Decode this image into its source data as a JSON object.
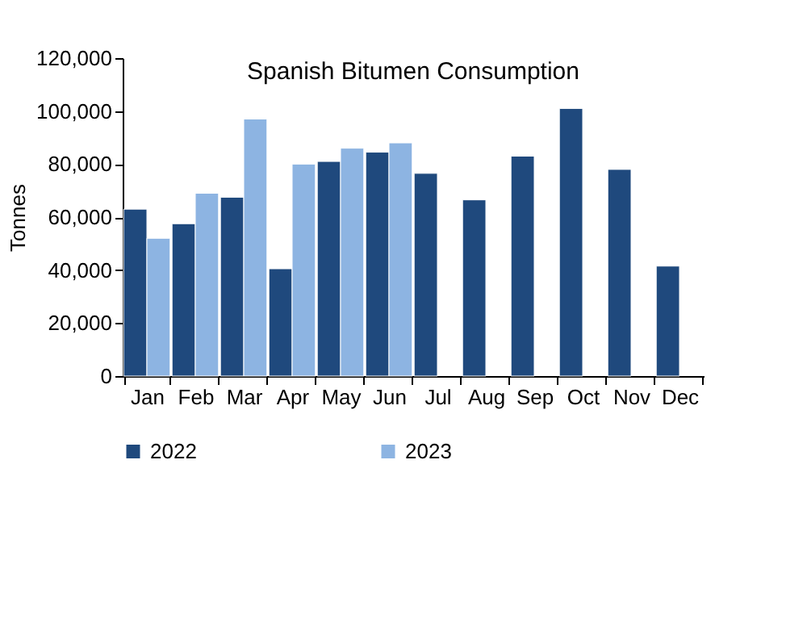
{
  "chart_data": {
    "type": "bar",
    "title": "Spanish Bitumen Consumption",
    "ylabel": "Tonnes",
    "categories": [
      "Jan",
      "Feb",
      "Mar",
      "Apr",
      "May",
      "Jun",
      "Jul",
      "Aug",
      "Sep",
      "Oct",
      "Nov",
      "Dec"
    ],
    "series": [
      {
        "name": "2022",
        "color": "#1f497d",
        "values": [
          63000,
          57500,
          67500,
          40500,
          81000,
          84500,
          76500,
          66500,
          83000,
          101000,
          78000,
          41500
        ]
      },
      {
        "name": "2023",
        "color": "#8db4e2",
        "values": [
          52000,
          69000,
          97000,
          80000,
          86000,
          88000,
          null,
          null,
          null,
          null,
          null,
          null
        ]
      }
    ],
    "ylim": [
      0,
      120000
    ],
    "yticks": [
      0,
      {
        "value": 20000,
        "label": "20,000"
      },
      {
        "value": 40000,
        "label": "40,000"
      },
      {
        "value": 60000,
        "label": "60,000"
      },
      {
        "value": 80000,
        "label": "80,000"
      },
      {
        "value": 100000,
        "label": "100,000"
      },
      {
        "value": 120000,
        "label": "120,000"
      }
    ],
    "grid": false,
    "legend": "bottom"
  }
}
